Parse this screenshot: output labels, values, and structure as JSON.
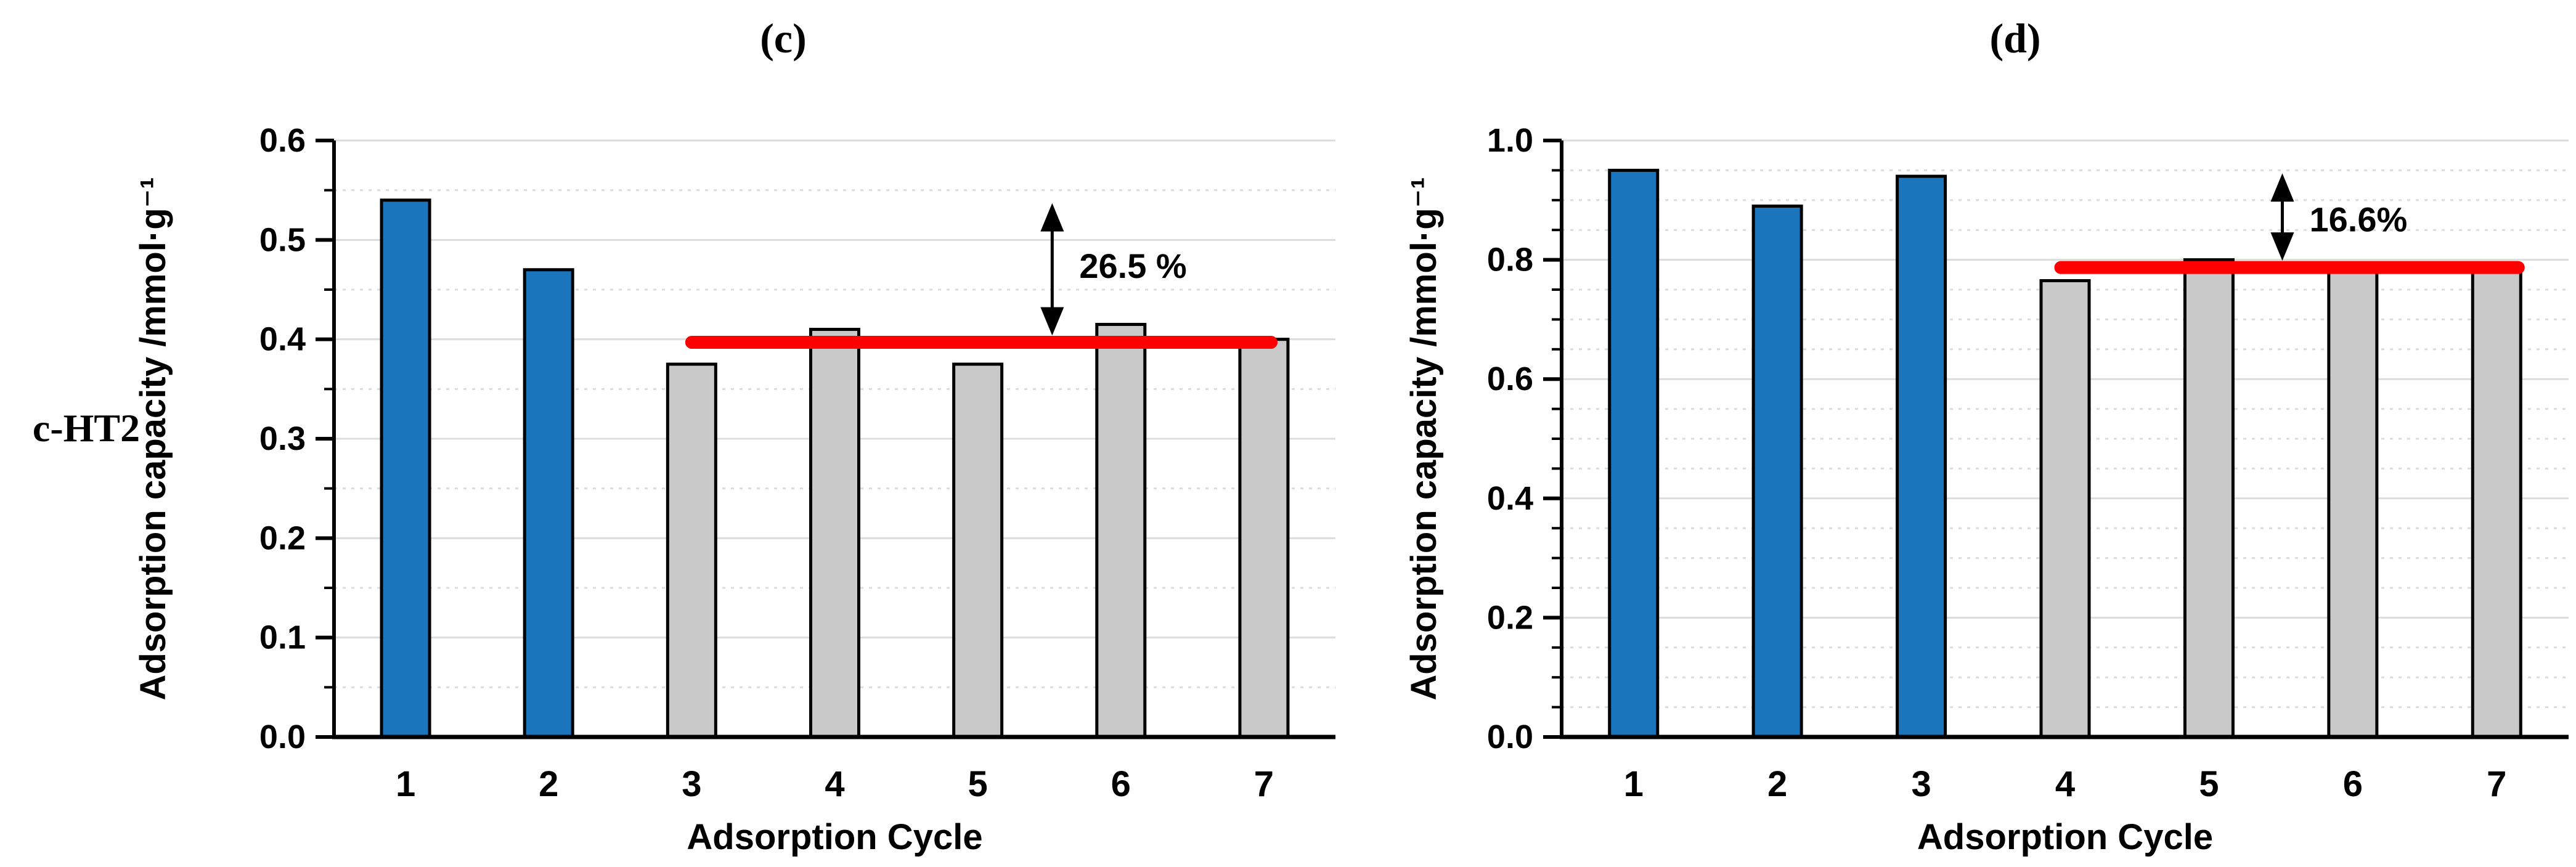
{
  "figure": {
    "sample_label": "c-HT2"
  },
  "colors": {
    "blue_bar": "#1B75BC",
    "gray_bar": "#C9C9C9",
    "bar_outline": "#000000",
    "ref_line_red": "#FF0000",
    "axis": "#000000",
    "gridline": "#DCDCDC"
  },
  "chart_data": [
    {
      "type": "bar",
      "title": "(c)",
      "xlabel": "Adsorption Cycle",
      "ylabel": "Adsorption capacity /mmol·g⁻¹",
      "categories": [
        "1",
        "2",
        "3",
        "4",
        "5",
        "6",
        "7"
      ],
      "values": [
        0.54,
        0.47,
        0.375,
        0.41,
        0.375,
        0.415,
        0.4
      ],
      "bar_colors": [
        "blue",
        "blue",
        "gray",
        "gray",
        "gray",
        "gray",
        "gray"
      ],
      "ylim": [
        0.0,
        0.6
      ],
      "ytick_step": 0.1,
      "minor_grid_step": 0.05,
      "ytick_decimals": 1,
      "grid": true,
      "legend": "none",
      "ref_line": {
        "value": 0.397,
        "from_cycle": 3.0,
        "to_cycle": 7.05
      },
      "annotation": {
        "text": "26.5 %",
        "arrow_cycle": 5.52,
        "arrow_top_value": 0.537,
        "arrow_bottom_value": 0.397,
        "label_value": 0.474
      }
    },
    {
      "type": "bar",
      "title": "(d)",
      "xlabel": "Adsorption Cycle",
      "ylabel": "Adsorption capacity /mmol·g⁻¹",
      "categories": [
        "1",
        "2",
        "3",
        "4",
        "5",
        "6",
        "7"
      ],
      "values": [
        0.95,
        0.89,
        0.94,
        0.765,
        0.8,
        0.785,
        0.79
      ],
      "bar_colors": [
        "blue",
        "blue",
        "blue",
        "gray",
        "gray",
        "gray",
        "gray"
      ],
      "ylim": [
        0.0,
        1.0
      ],
      "ytick_step": 0.2,
      "minor_grid_step": 0.05,
      "ytick_decimals": 1,
      "grid": true,
      "legend": "none",
      "ref_line": {
        "value": 0.787,
        "from_cycle": 3.97,
        "to_cycle": 7.15
      },
      "annotation": {
        "text": "16.6%",
        "arrow_cycle": 5.51,
        "arrow_top_value": 0.945,
        "arrow_bottom_value": 0.787,
        "label_value": 0.868
      }
    }
  ]
}
